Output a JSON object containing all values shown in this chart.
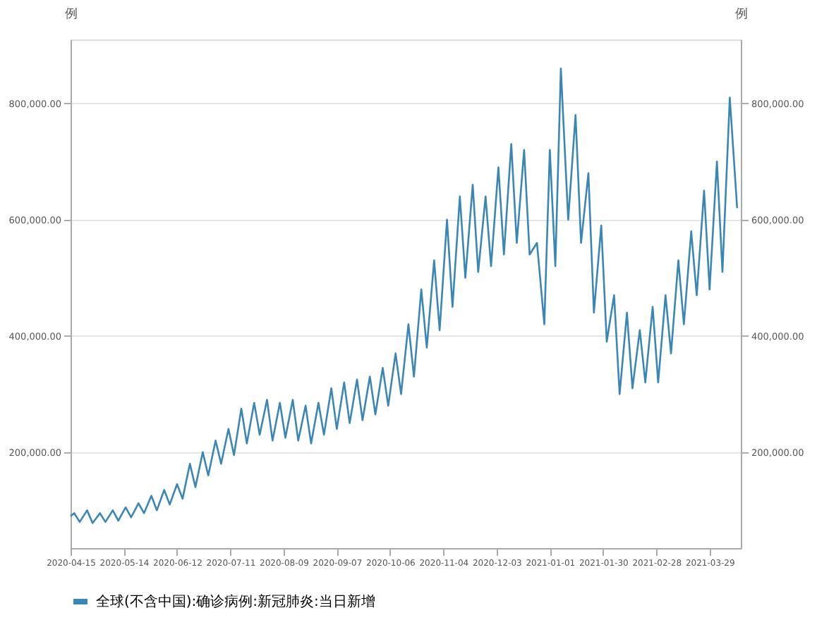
{
  "chart_data": {
    "type": "line",
    "ylabel": "例",
    "y2label": "例",
    "x": [
      "2020-04-15",
      "2020-04-17",
      "2020-04-20",
      "2020-04-24",
      "2020-04-27",
      "2020-05-01",
      "2020-05-04",
      "2020-05-08",
      "2020-05-11",
      "2020-05-15",
      "2020-05-18",
      "2020-05-22",
      "2020-05-25",
      "2020-05-29",
      "2020-06-01",
      "2020-06-05",
      "2020-06-08",
      "2020-06-12",
      "2020-06-15",
      "2020-06-19",
      "2020-06-22",
      "2020-06-26",
      "2020-06-29",
      "2020-07-03",
      "2020-07-06",
      "2020-07-10",
      "2020-07-13",
      "2020-07-17",
      "2020-07-20",
      "2020-07-24",
      "2020-07-27",
      "2020-07-31",
      "2020-08-03",
      "2020-08-07",
      "2020-08-10",
      "2020-08-14",
      "2020-08-17",
      "2020-08-21",
      "2020-08-24",
      "2020-08-28",
      "2020-08-31",
      "2020-09-04",
      "2020-09-07",
      "2020-09-11",
      "2020-09-14",
      "2020-09-18",
      "2020-09-21",
      "2020-09-25",
      "2020-09-28",
      "2020-10-02",
      "2020-10-05",
      "2020-10-09",
      "2020-10-12",
      "2020-10-16",
      "2020-10-19",
      "2020-10-23",
      "2020-10-26",
      "2020-10-30",
      "2020-11-02",
      "2020-11-06",
      "2020-11-09",
      "2020-11-13",
      "2020-11-16",
      "2020-11-20",
      "2020-11-23",
      "2020-11-27",
      "2020-11-30",
      "2020-12-04",
      "2020-12-07",
      "2020-12-11",
      "2020-12-14",
      "2020-12-18",
      "2020-12-21",
      "2020-12-25",
      "2020-12-29",
      "2021-01-01",
      "2021-01-04",
      "2021-01-07",
      "2021-01-11",
      "2021-01-15",
      "2021-01-18",
      "2021-01-22",
      "2021-01-25",
      "2021-01-29",
      "2021-02-01",
      "2021-02-05",
      "2021-02-08",
      "2021-02-12",
      "2021-02-15",
      "2021-02-19",
      "2021-02-22",
      "2021-02-26",
      "2021-03-01",
      "2021-03-05",
      "2021-03-08",
      "2021-03-12",
      "2021-03-15",
      "2021-03-19",
      "2021-03-22",
      "2021-03-26",
      "2021-03-29",
      "2021-04-02",
      "2021-04-05",
      "2021-04-09",
      "2021-04-13"
    ],
    "series": [
      {
        "name": "全球(不含中国):确诊病例:新冠肺炎:当日新增",
        "color": "#3a87b5",
        "values": [
          90000,
          95000,
          80000,
          100000,
          78000,
          95000,
          80000,
          100000,
          82000,
          105000,
          88000,
          112000,
          95000,
          125000,
          100000,
          135000,
          110000,
          145000,
          120000,
          180000,
          140000,
          200000,
          160000,
          220000,
          180000,
          240000,
          195000,
          275000,
          215000,
          285000,
          230000,
          290000,
          220000,
          285000,
          225000,
          290000,
          220000,
          280000,
          215000,
          285000,
          230000,
          310000,
          240000,
          320000,
          250000,
          325000,
          255000,
          330000,
          265000,
          345000,
          280000,
          370000,
          300000,
          420000,
          330000,
          480000,
          380000,
          530000,
          410000,
          600000,
          450000,
          640000,
          500000,
          660000,
          510000,
          640000,
          520000,
          690000,
          540000,
          730000,
          560000,
          720000,
          540000,
          560000,
          420000,
          720000,
          520000,
          860000,
          600000,
          780000,
          560000,
          680000,
          440000,
          590000,
          390000,
          470000,
          300000,
          440000,
          310000,
          410000,
          320000,
          450000,
          320000,
          470000,
          370000,
          530000,
          420000,
          580000,
          470000,
          650000,
          480000,
          700000,
          510000,
          810000,
          620000
        ]
      }
    ],
    "xlim": [
      "2020-04-15",
      "2021-04-15"
    ],
    "xticks": [
      "2020-04-15",
      "2020-05-14",
      "2020-06-12",
      "2020-07-11",
      "2020-08-09",
      "2020-09-07",
      "2020-10-06",
      "2020-11-04",
      "2020-12-03",
      "2021-01-01",
      "2021-01-30",
      "2021-02-28",
      "2021-03-29"
    ],
    "ylim": [
      35000,
      910000
    ],
    "yticks": [
      {
        "value": 200000,
        "label": "200,000.00"
      },
      {
        "value": 400000,
        "label": "400,000.00"
      },
      {
        "value": 600000,
        "label": "600,000.00"
      },
      {
        "value": 800000,
        "label": "800,000.00"
      }
    ],
    "y2lim": [
      35000,
      910000
    ],
    "y2ticks": [
      {
        "value": 200000,
        "label": "200,000.00"
      },
      {
        "value": 400000,
        "label": "400,000.00"
      },
      {
        "value": 600000,
        "label": "600,000.00"
      },
      {
        "value": 800000,
        "label": "800,000.00"
      }
    ],
    "grid": "y",
    "legend": "bottom",
    "line_style": "solid",
    "marker": "none"
  }
}
